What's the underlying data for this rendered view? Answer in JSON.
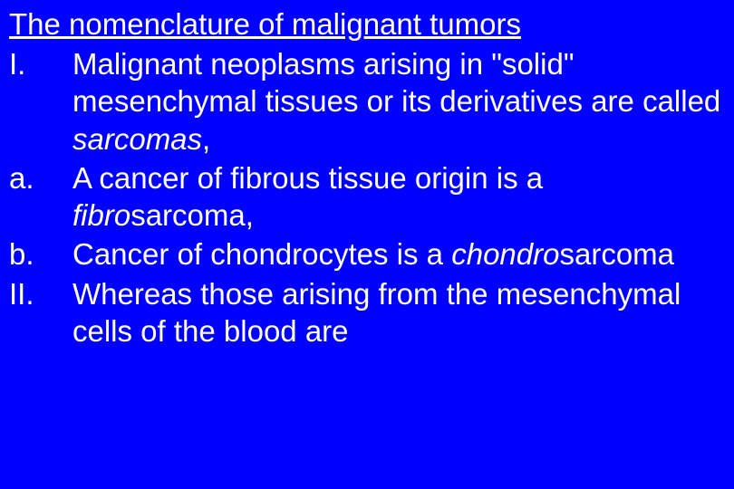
{
  "slide": {
    "title": "The nomenclature of malignant tumors",
    "background_color": "#0000ff",
    "text_color": "#ffffff",
    "title_fontsize": 33,
    "body_fontsize": 33,
    "font_family": "Arial",
    "items": [
      {
        "marker": "I.",
        "text_before": "Malignant neoplasms arising in \"solid\" mesenchymal tissues or its derivatives are called ",
        "italic_word": "sarcomas",
        "text_after": ","
      },
      {
        "marker": "a.",
        "text_before": "A cancer of fibrous tissue origin is a ",
        "italic_word": "fibro",
        "text_after_italic": "sarcoma,"
      },
      {
        "marker": "b.",
        "text_before": "Cancer of chondrocytes is a ",
        "italic_word": "chondro",
        "text_after_italic": "sarcoma"
      },
      {
        "marker": "II.",
        "text_before": "Whereas those arising from the mesenchymal cells of the blood are",
        "italic_word": "",
        "text_after": ""
      }
    ]
  }
}
